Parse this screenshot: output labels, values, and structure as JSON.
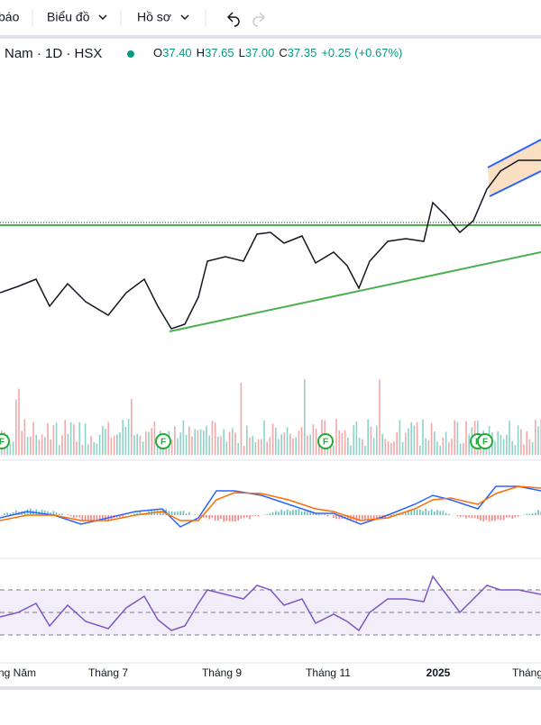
{
  "toolbar": {
    "items": [
      "báo",
      "Biểu đồ",
      "Hồ sơ"
    ]
  },
  "legend": {
    "symbol": "Nam · 1D · HSX",
    "ohlc": [
      {
        "label": "O",
        "value": "37.40"
      },
      {
        "label": "H",
        "value": "37.65"
      },
      {
        "label": "L",
        "value": "37.00"
      },
      {
        "label": "C",
        "value": "37.35"
      }
    ],
    "change": "+0.25",
    "change_pct": "(+0.67%)"
  },
  "markers": [
    "F",
    "F",
    "F",
    "F",
    "F"
  ],
  "x_axis": {
    "labels": [
      "ng Năm",
      "Tháng 7",
      "Tháng 9",
      "Tháng 11",
      "2025",
      "Tháng"
    ]
  }
}
